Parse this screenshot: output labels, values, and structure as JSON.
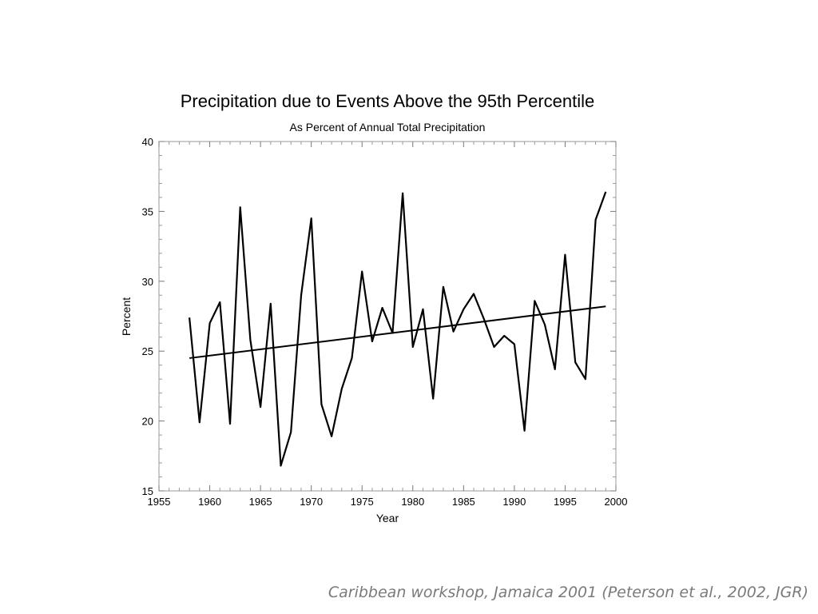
{
  "caption": "Caribbean workshop, Jamaica 2001 (Peterson et al., 2002, JGR)",
  "chart_data": {
    "type": "line",
    "title": "Precipitation due to Events Above the 95th Percentile",
    "subtitle": "As Percent of Annual Total Precipitation",
    "xlabel": "Year",
    "ylabel": "Percent",
    "xlim": [
      1955,
      2000
    ],
    "ylim": [
      15,
      40
    ],
    "xticks": [
      "1955",
      "1960",
      "1965",
      "1970",
      "1975",
      "1980",
      "1985",
      "1990",
      "1995",
      "2000"
    ],
    "yticks": [
      "15",
      "20",
      "25",
      "30",
      "35",
      "40"
    ],
    "grid": false,
    "series": [
      {
        "x": [
          1958,
          1959,
          1960,
          1961,
          1962,
          1963,
          1964,
          1965,
          1966,
          1967,
          1968,
          1969,
          1970,
          1971,
          1972,
          1973,
          1974,
          1975,
          1976,
          1977,
          1978,
          1979,
          1980,
          1981,
          1982,
          1983,
          1984,
          1985,
          1986,
          1987,
          1988,
          1989,
          1990,
          1991,
          1992,
          1993,
          1994,
          1995,
          1996,
          1997,
          1998,
          1999
        ],
        "y": [
          27.4,
          19.9,
          27.0,
          28.5,
          19.8,
          35.3,
          25.8,
          21.0,
          28.4,
          16.8,
          19.2,
          29.0,
          34.5,
          21.2,
          18.9,
          22.3,
          24.5,
          30.7,
          25.7,
          28.1,
          26.3,
          36.3,
          25.3,
          28.0,
          21.6,
          29.6,
          26.4,
          28.0,
          29.1,
          27.3,
          25.3,
          26.1,
          25.5,
          19.3,
          28.6,
          26.9,
          23.7,
          31.9,
          24.2,
          23.0,
          34.4,
          36.4
        ]
      },
      {
        "x": [
          1958,
          1999
        ],
        "y": [
          24.5,
          28.2
        ]
      }
    ]
  }
}
